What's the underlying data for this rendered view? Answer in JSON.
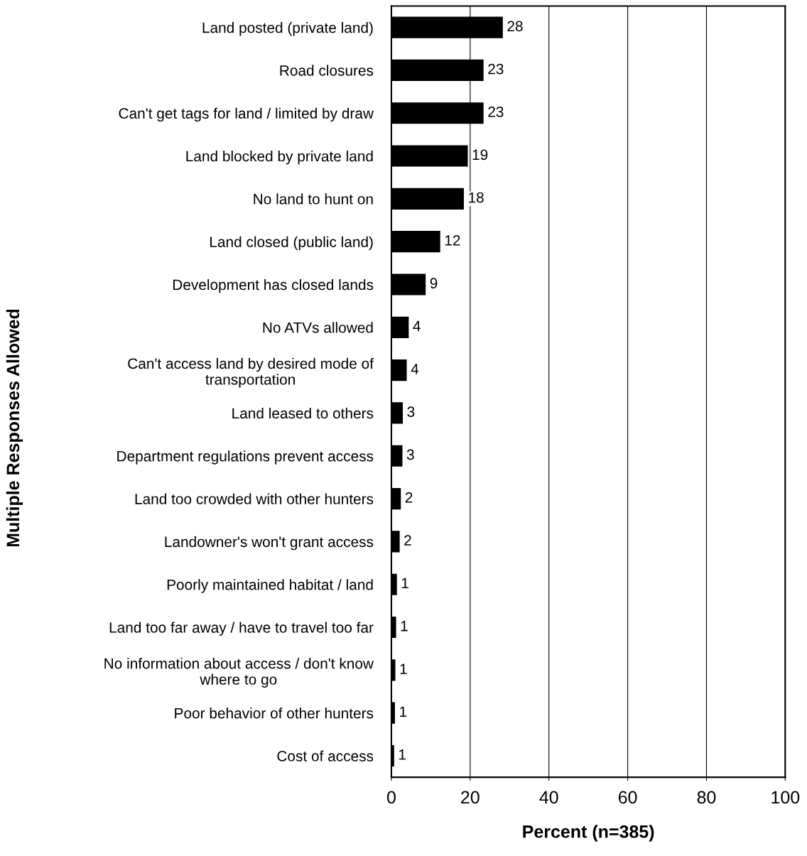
{
  "chart_data": {
    "type": "bar",
    "orientation": "horizontal",
    "xlabel": "Percent (n=385)",
    "ylabel": "Multiple Responses Allowed",
    "categories": [
      "Land posted (private land)",
      "Road closures",
      "Can't get tags for land / limited by draw",
      "Land blocked by private land",
      "No land to hunt on",
      "Land closed (public land)",
      "Development has closed lands",
      "No ATVs allowed",
      "Can't access land by desired mode of\ntransportation",
      "Land leased to others",
      "Department regulations prevent access",
      "Land too crowded with other hunters",
      "Landowner's won't grant access",
      "Poorly maintained habitat / land",
      "Land too far away / have to travel too far",
      "No information about access / don't know\nwhere to go",
      "Poor behavior of other hunters",
      "Cost of access"
    ],
    "values": [
      28.3,
      23.4,
      23.4,
      19.4,
      18.4,
      12.4,
      8.7,
      4.4,
      3.9,
      2.9,
      2.8,
      2.4,
      2.1,
      1.4,
      1.2,
      1.0,
      0.9,
      0.7
    ],
    "value_labels": [
      "28",
      "23",
      "23",
      "19",
      "18",
      "12",
      "9",
      "4",
      "4",
      "3",
      "3",
      "2",
      "2",
      "1",
      "1",
      "1",
      "1",
      "1"
    ],
    "color": "#000000",
    "xlim": [
      0,
      100
    ],
    "xticks": [
      0,
      20,
      40,
      60,
      80,
      100
    ],
    "grid": "x"
  }
}
